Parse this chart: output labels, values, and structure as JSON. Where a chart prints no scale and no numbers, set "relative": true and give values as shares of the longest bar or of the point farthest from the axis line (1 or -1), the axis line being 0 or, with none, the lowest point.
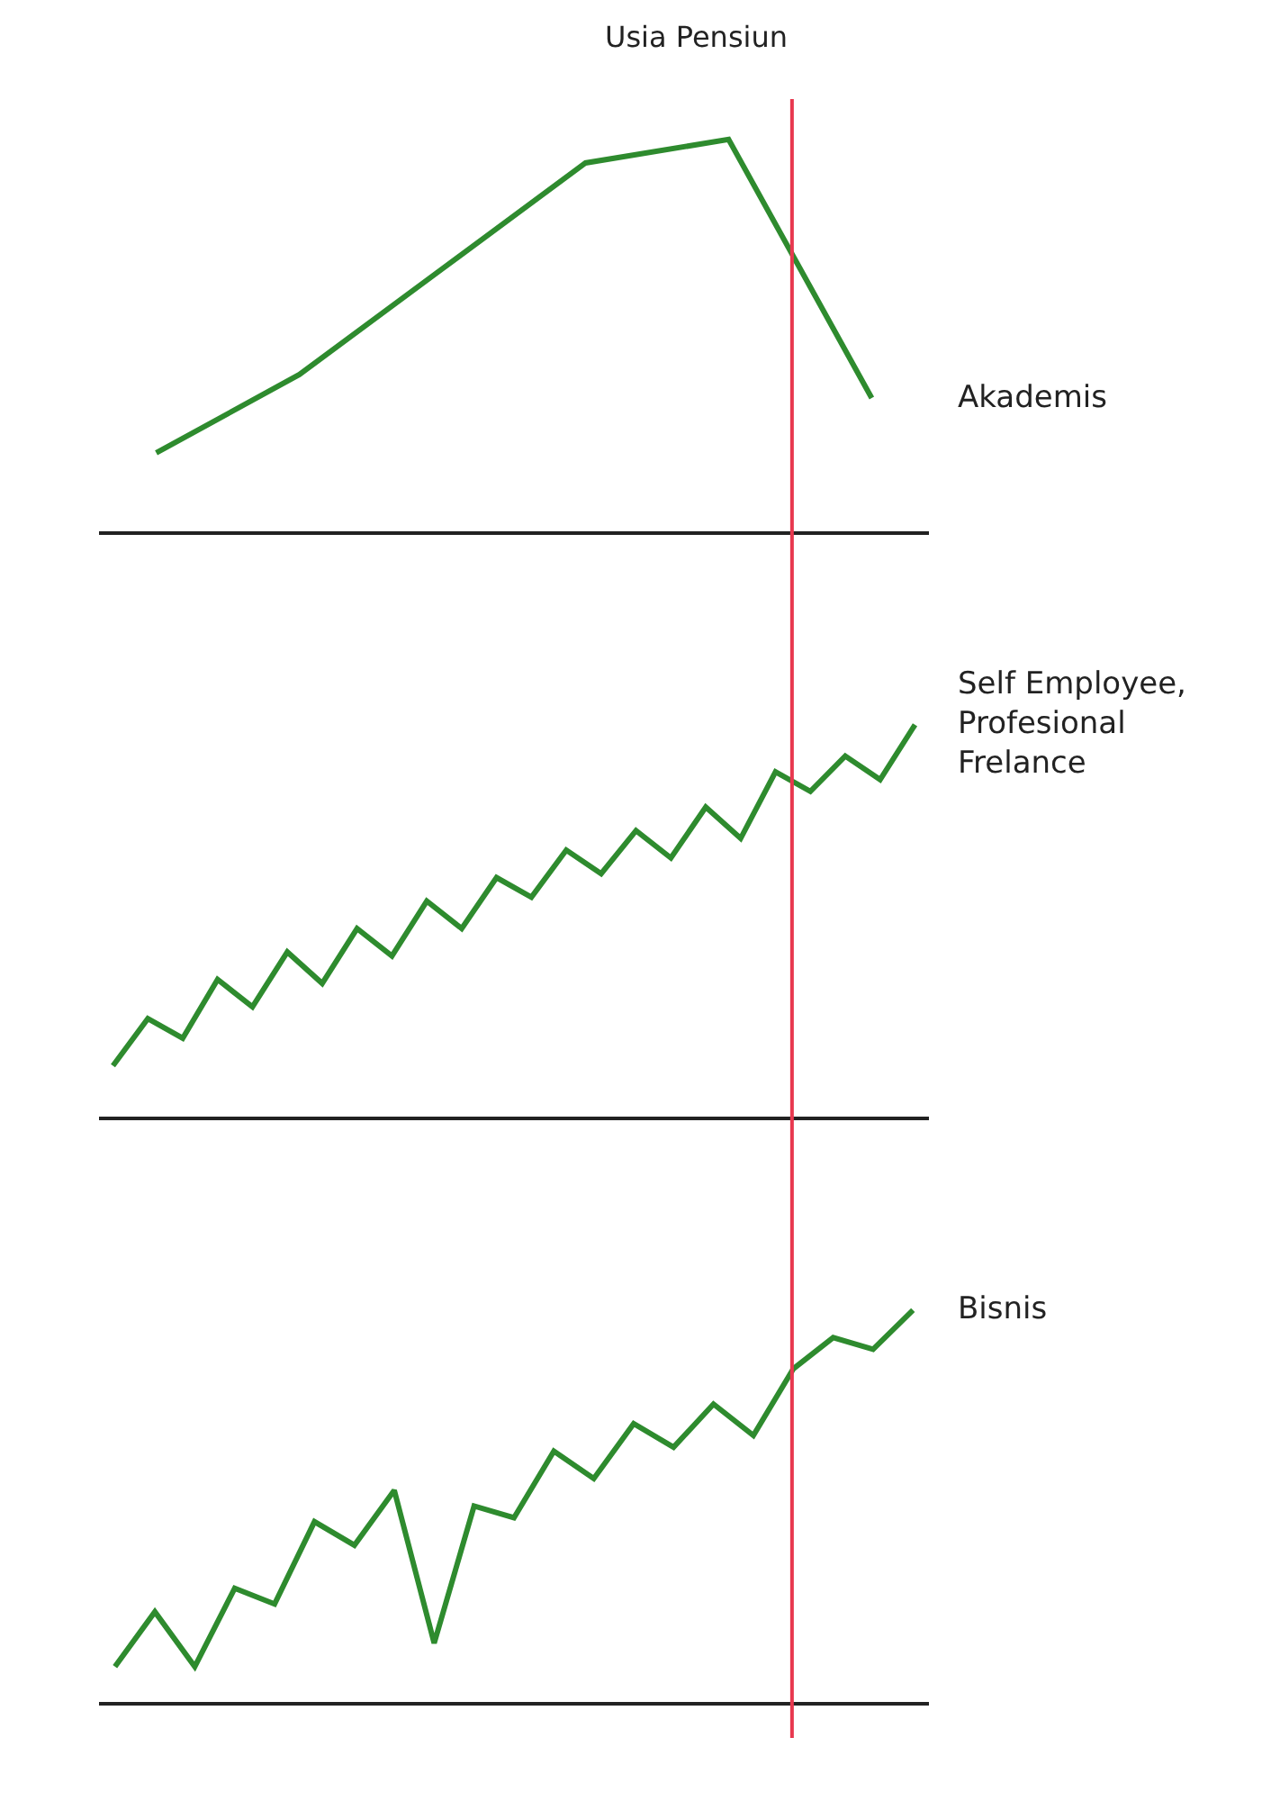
{
  "chart_data": [
    {
      "type": "line",
      "relative": true,
      "categories": [
        null,
        null,
        null,
        null,
        null,
        null
      ],
      "series": [
        {
          "name": "Akademis",
          "color": "#2e8b2e",
          "values": [
            0.2,
            0.4,
            0.67,
            0.94,
            1,
            0.34
          ]
        }
      ],
      "annotations": [
        "Usia Pensiun"
      ]
    },
    {
      "type": "line",
      "relative": true,
      "categories": [
        null,
        null,
        null,
        null,
        null,
        null,
        null,
        null,
        null,
        null,
        null,
        null,
        null,
        null,
        null,
        null,
        null,
        null,
        null,
        null,
        null,
        null,
        null,
        null
      ],
      "series": [
        {
          "name": "Self Employee,\nProfesional\nFrelance",
          "color": "#2e8b2e",
          "values": [
            0.13,
            0.25,
            0.2,
            0.35,
            0.28,
            0.42,
            0.34,
            0.48,
            0.41,
            0.55,
            0.48,
            0.61,
            0.56,
            0.68,
            0.62,
            0.73,
            0.66,
            0.79,
            0.71,
            0.88,
            0.83,
            0.92,
            0.86,
            1
          ]
        }
      ]
    },
    {
      "type": "line",
      "relative": true,
      "categories": [
        null,
        null,
        null,
        null,
        null,
        null,
        null,
        null,
        null,
        null,
        null,
        null,
        null,
        null,
        null,
        null,
        null,
        null,
        null,
        null,
        null
      ],
      "series": [
        {
          "name": "Bisnis",
          "color": "#2e8b2e",
          "values": [
            0.09,
            0.23,
            0.09,
            0.29,
            0.25,
            0.46,
            0.4,
            0.54,
            0.15,
            0.5,
            0.47,
            0.64,
            0.57,
            0.71,
            0.65,
            0.76,
            0.68,
            0.85,
            0.93,
            0.9,
            1
          ]
        }
      ]
    }
  ]
}
